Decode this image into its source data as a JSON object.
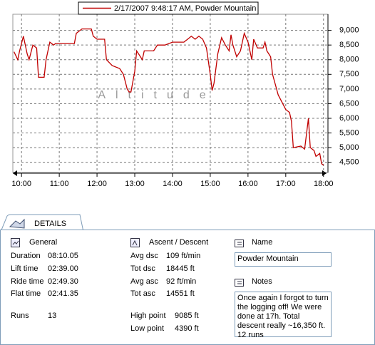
{
  "chart_data": {
    "type": "line",
    "y_label": "Altitude",
    "xlim": [
      9.77,
      18.08
    ],
    "ylim": [
      4200,
      9550
    ],
    "xticks": [
      {
        "value": 10,
        "label": "10:00"
      },
      {
        "value": 11,
        "label": "11:00"
      },
      {
        "value": 12,
        "label": "12:00"
      },
      {
        "value": 13,
        "label": "13:00"
      },
      {
        "value": 14,
        "label": "14:00"
      },
      {
        "value": 15,
        "label": "15:00"
      },
      {
        "value": 16,
        "label": "16:00"
      },
      {
        "value": 17,
        "label": "17:00"
      },
      {
        "value": 18,
        "label": "18:00"
      }
    ],
    "yticks": [
      {
        "value": 4500,
        "label": "4,500"
      },
      {
        "value": 5000,
        "label": "5,000"
      },
      {
        "value": 5500,
        "label": "5,500"
      },
      {
        "value": 6000,
        "label": "6,000"
      },
      {
        "value": 6500,
        "label": "6,500"
      },
      {
        "value": 7000,
        "label": "7,000"
      },
      {
        "value": 7500,
        "label": "7,500"
      },
      {
        "value": 8000,
        "label": "8,000"
      },
      {
        "value": 8500,
        "label": "8,500"
      },
      {
        "value": 9000,
        "label": "9,000"
      }
    ],
    "grid": true,
    "series": [
      {
        "name": "2/17/2007 9:48:17 AM, Powder Mountain",
        "color": "#c00000",
        "x": [
          9.8,
          9.9,
          9.95,
          10.05,
          10.15,
          10.2,
          10.3,
          10.4,
          10.45,
          10.6,
          10.65,
          10.75,
          10.85,
          10.9,
          11.4,
          11.45,
          11.6,
          11.85,
          11.9,
          12.0,
          12.2,
          12.25,
          12.4,
          12.6,
          12.7,
          12.8,
          12.85,
          12.9,
          13.0,
          13.05,
          13.2,
          13.25,
          13.5,
          13.6,
          13.8,
          14.0,
          14.3,
          14.4,
          14.5,
          14.6,
          14.7,
          14.8,
          14.9,
          15.0,
          15.05,
          15.1,
          15.2,
          15.3,
          15.4,
          15.5,
          15.55,
          15.6,
          15.7,
          15.8,
          15.9,
          16.0,
          16.1,
          16.15,
          16.25,
          16.4,
          16.45,
          16.5,
          16.6,
          16.65,
          16.8,
          17.0,
          17.1,
          17.15,
          17.2,
          17.4,
          17.5,
          17.6,
          17.65,
          17.75,
          17.8,
          17.9,
          17.95,
          18.0
        ],
        "values": [
          8270,
          8000,
          8300,
          8800,
          8200,
          8000,
          8500,
          8400,
          7400,
          7400,
          8000,
          8600,
          8500,
          8550,
          8550,
          8900,
          9050,
          9050,
          8800,
          8700,
          8700,
          8000,
          7800,
          7700,
          7500,
          7000,
          6900,
          6900,
          7600,
          8300,
          8000,
          8300,
          8300,
          8500,
          8500,
          8600,
          8600,
          8700,
          8800,
          8700,
          8800,
          8700,
          8400,
          7500,
          6950,
          7200,
          8200,
          8750,
          8500,
          8300,
          8850,
          8500,
          8100,
          8300,
          8900,
          8600,
          8000,
          8700,
          8400,
          8400,
          8600,
          8300,
          8100,
          7500,
          6800,
          6300,
          6200,
          5900,
          5000,
          5050,
          4950,
          6000,
          5000,
          4900,
          4700,
          4800,
          4450,
          4400
        ]
      }
    ]
  },
  "details": {
    "tab": "DETAILS",
    "general": {
      "title": "General",
      "rows": [
        [
          "Duration",
          "08:10.05"
        ],
        [
          "Lift time",
          "02:39.00"
        ],
        [
          "Ride time",
          "02:49.30"
        ],
        [
          "Flat time",
          "02:41.35"
        ],
        [
          "Runs",
          "13"
        ]
      ]
    },
    "ascent": {
      "title": "Ascent / Descent",
      "rows": [
        [
          "Avg dsc",
          "109 ft/min"
        ],
        [
          "Tot dsc",
          "18445 ft"
        ],
        [
          "Avg asc",
          "92 ft/min"
        ],
        [
          "Tot asc",
          "14551 ft"
        ],
        [
          "High point",
          "9085 ft"
        ],
        [
          "Low point",
          "4390 ft"
        ]
      ]
    },
    "name": {
      "title": "Name",
      "value": "Powder Mountain"
    },
    "notes": {
      "title": "Notes",
      "value": "Once again I forgot to turn the logging off! We were done at 17h. Total descent really ~16,350 ft. 12 runs"
    }
  }
}
